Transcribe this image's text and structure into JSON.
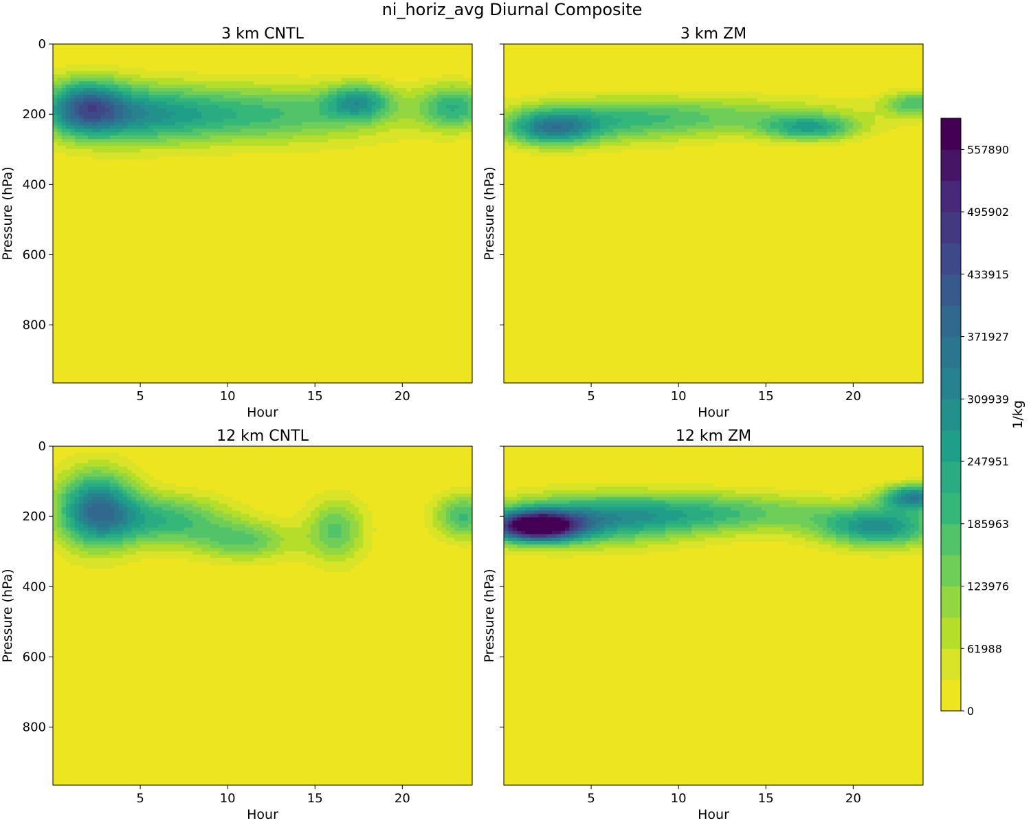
{
  "figure": {
    "title": "ni_horiz_avg Diurnal Composite"
  },
  "colors": {
    "colormap": "viridis",
    "background_level": "#ece51f"
  },
  "chart_data": [
    {
      "type": "heatmap",
      "title": "3 km CNTL",
      "xlabel": "Hour",
      "ylabel": "Pressure (hPa)",
      "xlim": [
        0,
        24
      ],
      "ylim": [
        965,
        0
      ],
      "x_ticks": [
        5,
        10,
        15,
        20
      ],
      "y_ticks": [
        0,
        200,
        400,
        600,
        800
      ],
      "show_y_ticklabels": true,
      "blobs": [
        {
          "x": 1.8,
          "y": 180,
          "sx": 1.6,
          "sy": 55,
          "v": 300000
        },
        {
          "x": 4.5,
          "y": 200,
          "sx": 3.0,
          "sy": 60,
          "v": 180000
        },
        {
          "x": 9.0,
          "y": 200,
          "sx": 5.0,
          "sy": 55,
          "v": 120000
        },
        {
          "x": 17.5,
          "y": 165,
          "sx": 1.3,
          "sy": 35,
          "v": 220000
        },
        {
          "x": 23.0,
          "y": 180,
          "sx": 1.5,
          "sy": 45,
          "v": 200000
        },
        {
          "x": 14.0,
          "y": 200,
          "sx": 5.0,
          "sy": 60,
          "v": 100000
        }
      ]
    },
    {
      "type": "heatmap",
      "title": "3 km ZM",
      "xlabel": "Hour",
      "ylabel": "Pressure (hPa)",
      "xlim": [
        0,
        24
      ],
      "ylim": [
        965,
        0
      ],
      "x_ticks": [
        5,
        10,
        15,
        20
      ],
      "y_ticks": [
        0,
        200,
        400,
        600,
        800
      ],
      "show_y_ticklabels": false,
      "blobs": [
        {
          "x": 2.7,
          "y": 240,
          "sx": 1.8,
          "sy": 35,
          "v": 260000
        },
        {
          "x": 6.0,
          "y": 220,
          "sx": 4.0,
          "sy": 45,
          "v": 140000
        },
        {
          "x": 17.5,
          "y": 240,
          "sx": 1.8,
          "sy": 25,
          "v": 210000
        },
        {
          "x": 13.0,
          "y": 205,
          "sx": 6.0,
          "sy": 40,
          "v": 110000
        },
        {
          "x": 23.5,
          "y": 170,
          "sx": 1.2,
          "sy": 25,
          "v": 170000
        }
      ]
    },
    {
      "type": "heatmap",
      "title": "12 km CNTL",
      "xlabel": "Hour",
      "ylabel": "Pressure (hPa)",
      "xlim": [
        0,
        24
      ],
      "ylim": [
        965,
        0
      ],
      "x_ticks": [
        5,
        10,
        15,
        20
      ],
      "y_ticks": [
        0,
        200,
        400,
        600,
        800
      ],
      "show_y_ticklabels": true,
      "blobs": [
        {
          "x": 2.5,
          "y": 180,
          "sx": 1.6,
          "sy": 75,
          "v": 350000
        },
        {
          "x": 6.5,
          "y": 210,
          "sx": 2.5,
          "sy": 50,
          "v": 200000
        },
        {
          "x": 11.0,
          "y": 270,
          "sx": 2.0,
          "sy": 40,
          "v": 150000
        },
        {
          "x": 16.2,
          "y": 240,
          "sx": 1.2,
          "sy": 65,
          "v": 160000
        },
        {
          "x": 23.5,
          "y": 200,
          "sx": 1.2,
          "sy": 45,
          "v": 190000
        }
      ]
    },
    {
      "type": "heatmap",
      "title": "12 km ZM",
      "xlabel": "Hour",
      "ylabel": "Pressure (hPa)",
      "xlim": [
        0,
        24
      ],
      "ylim": [
        965,
        0
      ],
      "x_ticks": [
        5,
        10,
        15,
        20
      ],
      "y_ticks": [
        0,
        200,
        400,
        600,
        800
      ],
      "show_y_ticklabels": false,
      "blobs": [
        {
          "x": 1.8,
          "y": 228,
          "sx": 1.8,
          "sy": 30,
          "v": 560000
        },
        {
          "x": 5.0,
          "y": 210,
          "sx": 4.0,
          "sy": 50,
          "v": 230000
        },
        {
          "x": 12.0,
          "y": 190,
          "sx": 5.0,
          "sy": 40,
          "v": 170000
        },
        {
          "x": 21.5,
          "y": 230,
          "sx": 2.5,
          "sy": 40,
          "v": 280000
        },
        {
          "x": 23.5,
          "y": 145,
          "sx": 1.3,
          "sy": 25,
          "v": 320000
        }
      ]
    }
  ],
  "colorbar": {
    "label": "1/kg",
    "min": 0,
    "max": 588884,
    "levels": 19,
    "tick_values": [
      0,
      61988,
      123976,
      185963,
      247951,
      309939,
      371927,
      433915,
      495902,
      557890
    ],
    "tick_labels": [
      "0",
      "61988",
      "123976",
      "185963",
      "247951",
      "309939",
      "371927",
      "433915",
      "495902",
      "557890"
    ]
  }
}
